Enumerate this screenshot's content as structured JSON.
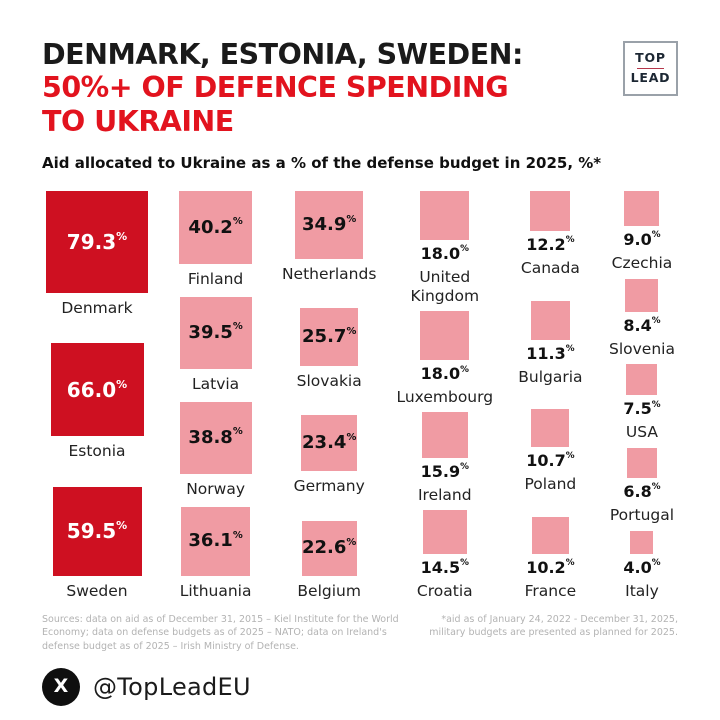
{
  "header": {
    "title_line1": "DENMARK, ESTONIA, SWEDEN:",
    "title_line2": "50%+ OF DEFENCE SPENDING",
    "title_line3": "TO UKRAINE",
    "subtitle": "Aid allocated to Ukraine as a % of the defense budget in 2025, %*"
  },
  "logo": {
    "top": "TOP",
    "lead": "LEAD"
  },
  "colors": {
    "ink": "#1a1a1a",
    "title_red": "#e2131e",
    "square_red": "#ce1021",
    "square_pink": "#f09ba3",
    "muted_gray": "#b3b3b3"
  },
  "chart_data": {
    "type": "bar",
    "variant": "proportional-area-squares",
    "title": "DENMARK, ESTONIA, SWEDEN: 50%+ OF DEFENCE SPENDING TO UKRAINE",
    "subtitle": "Aid allocated to Ukraine as a % of the defense budget in 2025, %*",
    "unit": "%",
    "categories": [
      "Denmark",
      "Estonia",
      "Sweden",
      "Finland",
      "Latvia",
      "Norway",
      "Lithuania",
      "Netherlands",
      "Slovakia",
      "Germany",
      "Belgium",
      "United Kingdom",
      "Luxembourg",
      "Ireland",
      "Croatia",
      "Canada",
      "Bulgaria",
      "Poland",
      "France",
      "Czechia",
      "Slovenia",
      "USA",
      "Portugal",
      "Italy"
    ],
    "values": [
      79.3,
      66.0,
      59.5,
      40.2,
      39.5,
      38.8,
      36.1,
      34.9,
      25.7,
      23.4,
      22.6,
      18.0,
      18.0,
      15.9,
      14.5,
      12.2,
      11.3,
      10.7,
      10.2,
      9.0,
      8.4,
      7.5,
      6.8,
      4.0
    ],
    "highlight_categories": [
      "Denmark",
      "Estonia",
      "Sweden"
    ],
    "highlight_color": "#ce1021",
    "default_color": "#f09ba3"
  },
  "grid": {
    "unit": "%",
    "scale": 11.5,
    "columns": [
      {
        "id": "1",
        "fill": "red",
        "value_position": "inside",
        "items": [
          {
            "label": "Denmark",
            "value": "79.3"
          },
          {
            "label": "Estonia",
            "value": "66.0"
          },
          {
            "label": "Sweden",
            "value": "59.5"
          }
        ]
      },
      {
        "id": "2",
        "fill": "pink",
        "value_position": "inside",
        "items": [
          {
            "label": "Finland",
            "value": "40.2"
          },
          {
            "label": "Latvia",
            "value": "39.5"
          },
          {
            "label": "Norway",
            "value": "38.8"
          },
          {
            "label": "Lithuania",
            "value": "36.1"
          }
        ]
      },
      {
        "id": "3",
        "fill": "pink",
        "value_position": "inside",
        "items": [
          {
            "label": "Netherlands",
            "value": "34.9"
          },
          {
            "label": "Slovakia",
            "value": "25.7"
          },
          {
            "label": "Germany",
            "value": "23.4"
          },
          {
            "label": "Belgium",
            "value": "22.6"
          }
        ]
      },
      {
        "id": "4",
        "fill": "pink",
        "value_position": "below",
        "items": [
          {
            "label": "United Kingdom",
            "value": "18.0"
          },
          {
            "label": "Luxembourg",
            "value": "18.0"
          },
          {
            "label": "Ireland",
            "value": "15.9"
          },
          {
            "label": "Croatia",
            "value": "14.5"
          }
        ]
      },
      {
        "id": "5",
        "fill": "pink",
        "value_position": "below",
        "items": [
          {
            "label": "Canada",
            "value": "12.2"
          },
          {
            "label": "Bulgaria",
            "value": "11.3"
          },
          {
            "label": "Poland",
            "value": "10.7"
          },
          {
            "label": "France",
            "value": "10.2"
          }
        ]
      },
      {
        "id": "6",
        "fill": "pink",
        "value_position": "below",
        "items": [
          {
            "label": "Czechia",
            "value": "9.0"
          },
          {
            "label": "Slovenia",
            "value": "8.4"
          },
          {
            "label": "USA",
            "value": "7.5"
          },
          {
            "label": "Portugal",
            "value": "6.8"
          },
          {
            "label": "Italy",
            "value": "4.0"
          }
        ]
      }
    ]
  },
  "footer": {
    "sources": "Sources: data on aid as of December 31, 2015 – Kiel Institute for the World Economy; data on defense budgets as of 2025 – NATO; data on Ireland's defense budget as of 2025 – Irish Ministry of Defense.",
    "footnote": "*aid as of January 24, 2022 - December 31, 2025, military budgets are presented as planned for 2025."
  },
  "social": {
    "x_glyph": "X",
    "handle": "@TopLeadEU"
  }
}
